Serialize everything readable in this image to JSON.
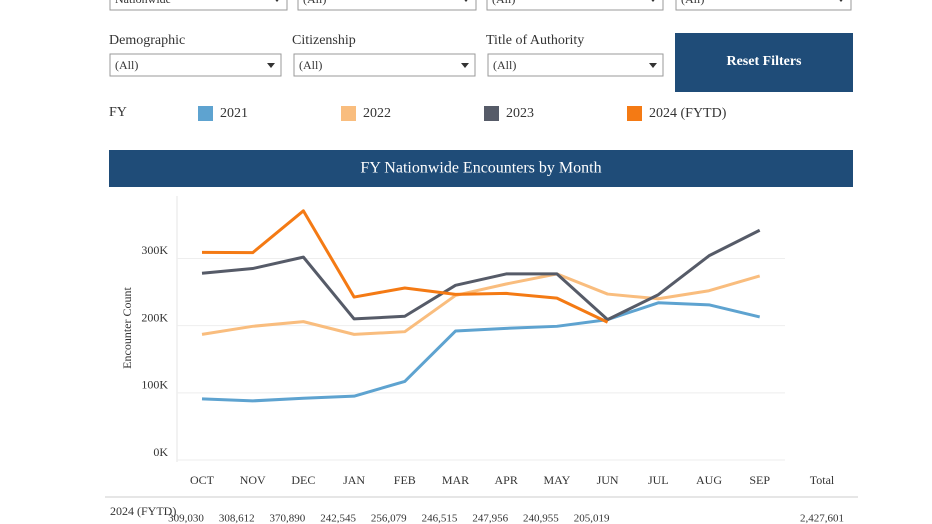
{
  "filters_top": [
    "Nationwide",
    "(All)",
    "(All)",
    "(All)"
  ],
  "filters": [
    {
      "label": "Demographic",
      "value": "(All)"
    },
    {
      "label": "Citizenship",
      "value": "(All)"
    },
    {
      "label": "Title of Authority",
      "value": "(All)"
    }
  ],
  "reset_button": "Reset Filters",
  "legend_title": "FY",
  "chart_data": {
    "type": "line",
    "title": "FY Nationwide Encounters by Month",
    "y_label": "Encounter Count",
    "categories": [
      "OCT",
      "NOV",
      "DEC",
      "JAN",
      "FEB",
      "MAR",
      "APR",
      "MAY",
      "JUN",
      "JUL",
      "AUG",
      "SEP"
    ],
    "series": [
      {
        "name": "2021",
        "color": "#5ea3d0",
        "values": [
          91000,
          88000,
          92000,
          95000,
          117000,
          192000,
          196000,
          199000,
          209000,
          234000,
          231000,
          213000
        ]
      },
      {
        "name": "2022",
        "color": "#f9bd7e",
        "values": [
          187000,
          199000,
          206000,
          187000,
          191000,
          245000,
          262000,
          277000,
          247000,
          240000,
          252000,
          274000
        ]
      },
      {
        "name": "2023",
        "color": "#565b68",
        "values": [
          278000,
          285000,
          302000,
          210000,
          214000,
          260000,
          277000,
          277000,
          209000,
          246000,
          304000,
          342000
        ]
      },
      {
        "name": "2024 (FYTD)",
        "color": "#f47a14",
        "values": [
          309030,
          308612,
          370890,
          242545,
          256079,
          246515,
          247956,
          240955,
          205019,
          null,
          null,
          null
        ],
        "value_labels": [
          "309,030",
          "308,612",
          "370,890",
          "242,545",
          "256,079",
          "246,515",
          "247,956",
          "240,955",
          "205,019",
          null,
          null,
          null
        ]
      }
    ],
    "ylim": [
      0,
      390000
    ],
    "yticks": [
      {
        "value": 0,
        "label": "0K"
      },
      {
        "value": 100000,
        "label": "100K"
      },
      {
        "value": 200000,
        "label": "200K"
      },
      {
        "value": 300000,
        "label": "300K"
      }
    ],
    "grid": true,
    "table": {
      "total_header": "Total",
      "row_label": "2024 (FYTD)",
      "row_total": "2,427,601"
    }
  }
}
